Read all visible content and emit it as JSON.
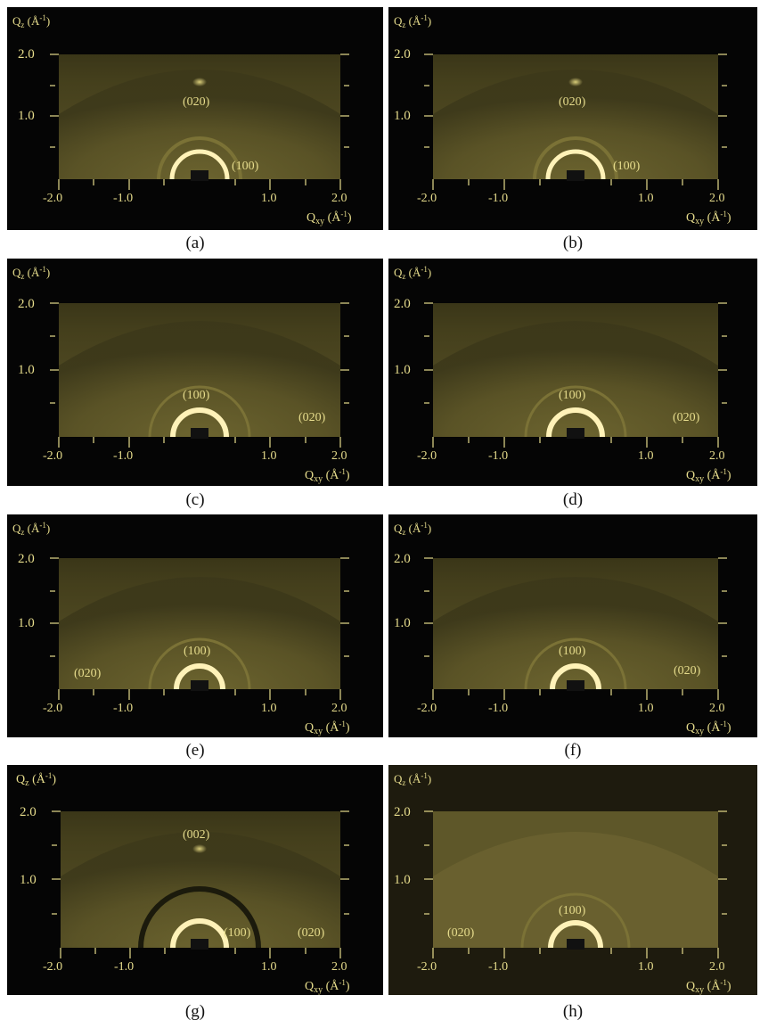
{
  "figure": {
    "panels": [
      {
        "caption": "(a)",
        "qz_label": "Q",
        "qz_sub": "z",
        "qz_unit": " (Å",
        "qxy_label": "Q",
        "qxy_sub": "xy",
        "qxy_unit": " (Å",
        "y_ticks": [
          "2.0",
          "1.0"
        ],
        "x_ticks": [
          "-2.0",
          "-1.0",
          "1.0",
          "2.0"
        ],
        "peaks": [
          "(020)",
          "(100)"
        ],
        "top_spot": true,
        "background": "#050505"
      },
      {
        "caption": "(b)",
        "qz_label": "Q",
        "qz_sub": "z",
        "qz_unit": " (Å",
        "qxy_label": "Q",
        "qxy_sub": "xy",
        "qxy_unit": " (Å",
        "y_ticks": [
          "2.0",
          "1.0"
        ],
        "x_ticks": [
          "-2.0",
          "-1.0",
          "1.0",
          "2.0"
        ],
        "peaks": [
          "(020)",
          "(100)"
        ],
        "top_spot": true,
        "background": "#050505"
      },
      {
        "caption": "(c)",
        "qz_label": "Q",
        "qz_sub": "z",
        "qz_unit": " (Å",
        "qxy_label": "Q",
        "qxy_sub": "xy",
        "qxy_unit": " (Å",
        "y_ticks": [
          "2.0",
          "1.0"
        ],
        "x_ticks": [
          "-2.0",
          "-1.0",
          "1.0",
          "2.0"
        ],
        "peaks": [
          "(100)",
          "(020)"
        ],
        "top_spot": false,
        "background": "#050505"
      },
      {
        "caption": "(d)",
        "qz_label": "Q",
        "qz_sub": "z",
        "qz_unit": " (Å",
        "qxy_label": "Q",
        "qxy_sub": "xy",
        "qxy_unit": " (Å",
        "y_ticks": [
          "2.0",
          "1.0"
        ],
        "x_ticks": [
          "-2.0",
          "-1.0",
          "1.0",
          "2.0"
        ],
        "peaks": [
          "(100)",
          "(020)"
        ],
        "top_spot": false,
        "background": "#050505"
      },
      {
        "caption": "(e)",
        "qz_label": "Q",
        "qz_sub": "z",
        "qz_unit": " (Å",
        "qxy_label": "Q",
        "qxy_sub": "xy",
        "qxy_unit": " (Å",
        "y_ticks": [
          "2.0",
          "1.0"
        ],
        "x_ticks": [
          "-2.0",
          "-1.0",
          "1.0",
          "2.0"
        ],
        "peaks": [
          "(100)",
          "(020)"
        ],
        "top_spot": false,
        "background": "#050505"
      },
      {
        "caption": "(f)",
        "qz_label": "Q",
        "qz_sub": "z",
        "qz_unit": " (Å",
        "qxy_label": "Q",
        "qxy_sub": "xy",
        "qxy_unit": " (Å",
        "y_ticks": [
          "2.0",
          "1.0"
        ],
        "x_ticks": [
          "-2.0",
          "-1.0",
          "1.0",
          "2.0"
        ],
        "peaks": [
          "(100)",
          "(020)"
        ],
        "top_spot": false,
        "background": "#050505"
      },
      {
        "caption": "(g)",
        "qz_label": "Q",
        "qz_sub": "z",
        "qz_unit": " (Å",
        "qxy_label": "Q",
        "qxy_sub": "xy",
        "qxy_unit": " (Å",
        "y_ticks": [
          "2.0",
          "1.0"
        ],
        "x_ticks": [
          "-2.0",
          "-1.0",
          "1.0",
          "2.0"
        ],
        "peaks": [
          "(002)",
          "(100)",
          "(020)"
        ],
        "top_spot": true,
        "background": "#050505"
      },
      {
        "caption": "(h)",
        "qz_label": "Q",
        "qz_sub": "z",
        "qz_unit": " (Å",
        "qxy_label": "Q",
        "qxy_sub": "xy",
        "qxy_unit": " (Å",
        "y_ticks": [
          "2.0",
          "1.0"
        ],
        "x_ticks": [
          "-2.0",
          "-1.0",
          "1.0",
          "2.0"
        ],
        "peaks": [
          "(100)",
          "(020)"
        ],
        "top_spot": false,
        "background": "#1e1b0e"
      }
    ],
    "unit_sup": "-1",
    "unit_close": ")",
    "colors": {
      "panel_bg": "#050505",
      "text": "#e6dc8c",
      "map_fill": "#5a5326",
      "ring_bright": "#fff2b8"
    }
  }
}
